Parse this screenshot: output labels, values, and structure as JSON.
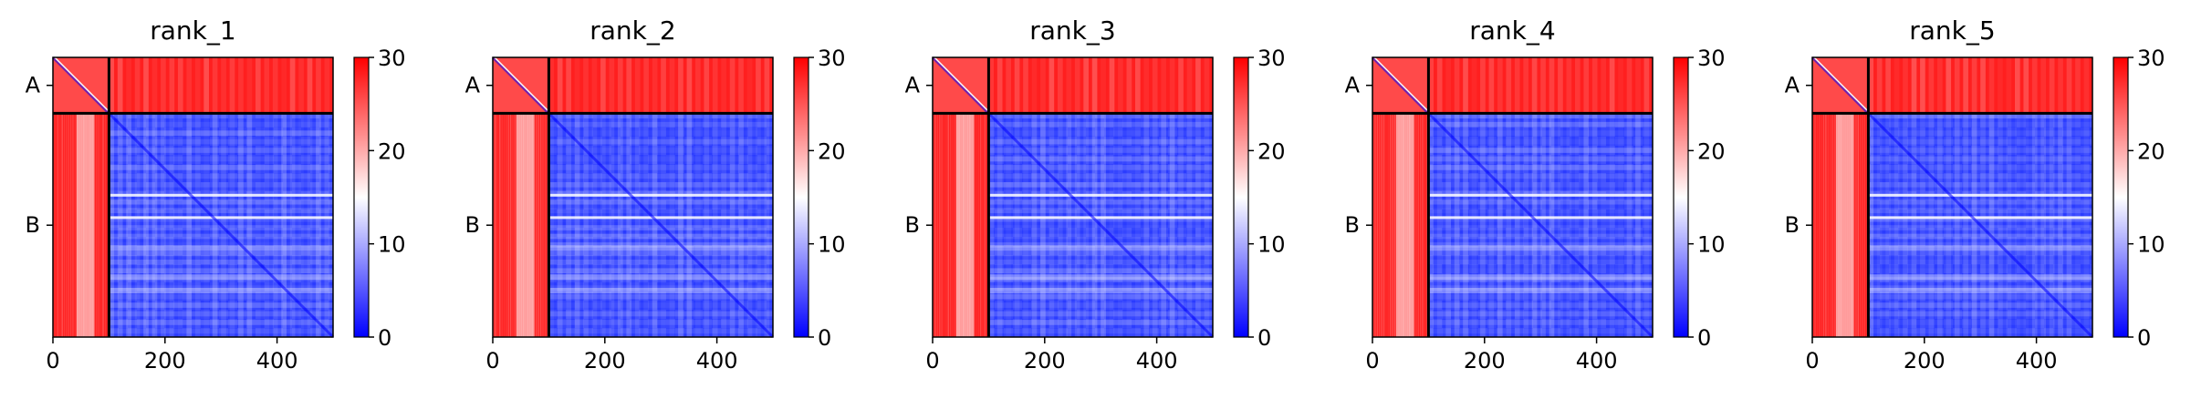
{
  "figure": {
    "panels": [
      {
        "title": "rank_1"
      },
      {
        "title": "rank_2"
      },
      {
        "title": "rank_3"
      },
      {
        "title": "rank_4"
      },
      {
        "title": "rank_5"
      }
    ]
  },
  "chart_data": {
    "type": "heatmap",
    "panel_titles": [
      "rank_1",
      "rank_2",
      "rank_3",
      "rank_4",
      "rank_5"
    ],
    "xlim": [
      0,
      500
    ],
    "x_ticks": [
      0,
      200,
      400
    ],
    "x_tick_labels": [
      "0",
      "200",
      "400"
    ],
    "chain_boundary": 100,
    "y_tick_labels": [
      "A",
      "B"
    ],
    "y_tick_positions": [
      50,
      300
    ],
    "colorbar": {
      "vmin": 0,
      "vmax": 30,
      "ticks": [
        0,
        10,
        20,
        30
      ],
      "tick_labels": [
        "0",
        "10",
        "20",
        "30"
      ],
      "colormap": [
        "#0000ff",
        "#ffffff",
        "#ff0000"
      ]
    },
    "grid": false,
    "legend": "none"
  }
}
